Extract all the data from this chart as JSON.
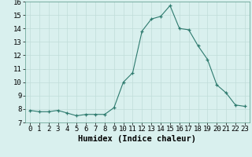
{
  "x": [
    0,
    1,
    2,
    3,
    4,
    5,
    6,
    7,
    8,
    9,
    10,
    11,
    12,
    13,
    14,
    15,
    16,
    17,
    18,
    19,
    20,
    21,
    22,
    23
  ],
  "y": [
    7.9,
    7.8,
    7.8,
    7.9,
    7.7,
    7.5,
    7.6,
    7.6,
    7.6,
    8.1,
    10.0,
    10.7,
    13.8,
    14.7,
    14.9,
    15.7,
    14.0,
    13.9,
    12.7,
    11.7,
    9.8,
    9.2,
    8.3,
    8.2
  ],
  "xlabel": "Humidex (Indice chaleur)",
  "xlim": [
    -0.5,
    23.5
  ],
  "ylim": [
    7,
    16
  ],
  "yticks": [
    7,
    8,
    9,
    10,
    11,
    12,
    13,
    14,
    15,
    16
  ],
  "xticks": [
    0,
    1,
    2,
    3,
    4,
    5,
    6,
    7,
    8,
    9,
    10,
    11,
    12,
    13,
    14,
    15,
    16,
    17,
    18,
    19,
    20,
    21,
    22,
    23
  ],
  "line_color": "#2d7a6e",
  "marker": "+",
  "bg_color": "#d9f0ee",
  "grid_color": "#c0ddd9",
  "tick_fontsize": 6.5,
  "xlabel_fontsize": 7.5
}
